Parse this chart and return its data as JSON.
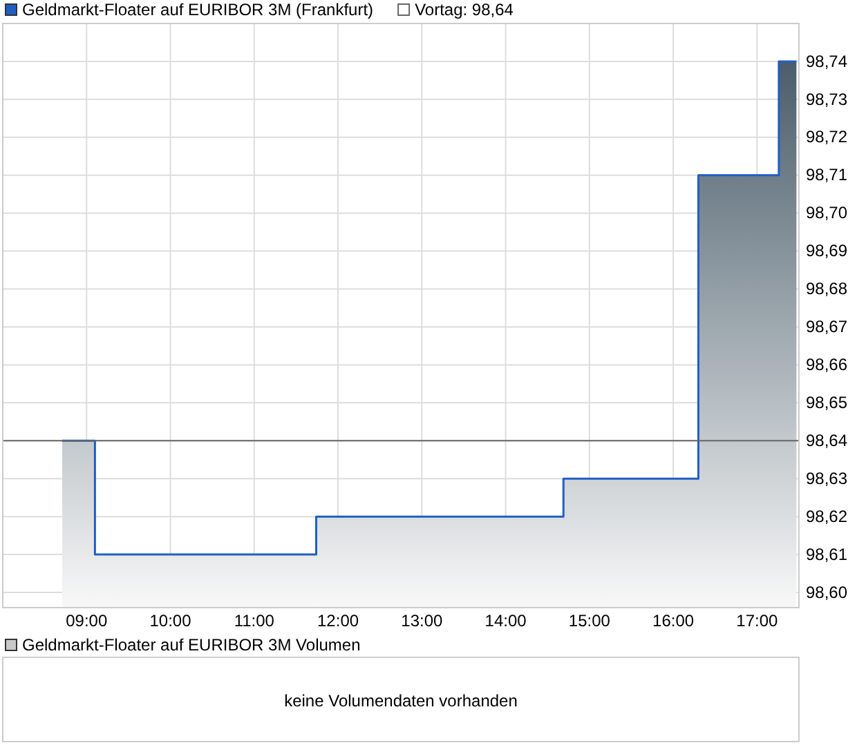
{
  "chart_data": [
    {
      "type": "area",
      "x": [
        8.71,
        9.1,
        9.1,
        11.74,
        11.74,
        14.69,
        14.69,
        16.3,
        16.3,
        17.26,
        17.26,
        17.47
      ],
      "series": [
        {
          "type": "area",
          "name": "Geldmarkt-Floater auf EURIBOR 3M (Frankfurt)",
          "color": "#1f5fc4",
          "values": [
            98.64,
            98.64,
            98.61,
            98.61,
            98.62,
            98.62,
            98.63,
            98.63,
            98.71,
            98.71,
            98.74,
            98.74
          ]
        }
      ],
      "xlim": [
        8,
        17.5
      ],
      "ylim": [
        98.596,
        98.75
      ],
      "xticks": [
        {
          "value": 9,
          "label": "09:00"
        },
        {
          "value": 10,
          "label": "10:00"
        },
        {
          "value": 11,
          "label": "11:00"
        },
        {
          "value": 12,
          "label": "12:00"
        },
        {
          "value": 13,
          "label": "13:00"
        },
        {
          "value": 14,
          "label": "14:00"
        },
        {
          "value": 15,
          "label": "15:00"
        },
        {
          "value": 16,
          "label": "16:00"
        },
        {
          "value": 17,
          "label": "17:00"
        }
      ],
      "yticks": [
        {
          "value": 98.6,
          "label": "98,60"
        },
        {
          "value": 98.61,
          "label": "98,61"
        },
        {
          "value": 98.62,
          "label": "98,62"
        },
        {
          "value": 98.63,
          "label": "98,63"
        },
        {
          "value": 98.64,
          "label": "98,64"
        },
        {
          "value": 98.65,
          "label": "98,65"
        },
        {
          "value": 98.66,
          "label": "98,66"
        },
        {
          "value": 98.67,
          "label": "98,67"
        },
        {
          "value": 98.68,
          "label": "98,68"
        },
        {
          "value": 98.69,
          "label": "98,69"
        },
        {
          "value": 98.7,
          "label": "98,70"
        },
        {
          "value": 98.71,
          "label": "98,71"
        },
        {
          "value": 98.72,
          "label": "98,72"
        },
        {
          "value": 98.73,
          "label": "98,73"
        },
        {
          "value": 98.74,
          "label": "98,74"
        }
      ],
      "ref_lines": [
        {
          "axis": "y",
          "value": 98.64,
          "label": "Vortag: 98,64",
          "color": "#666666"
        }
      ],
      "grid": true,
      "legend": "top left"
    },
    {
      "type": "other",
      "title": "Geldmarkt-Floater auf EURIBOR 3M Volumen",
      "annotations": [
        "keine Volumendaten vorhanden"
      ]
    }
  ]
}
